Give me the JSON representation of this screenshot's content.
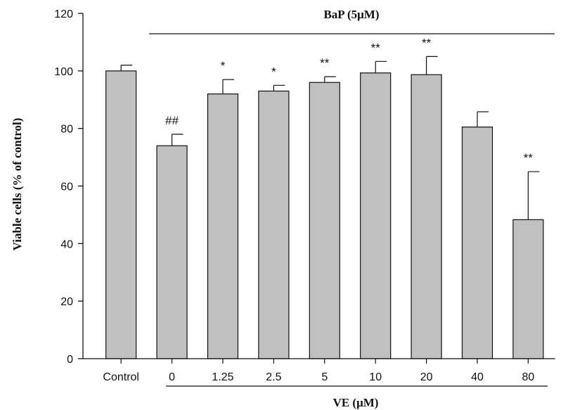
{
  "chart_data": {
    "type": "bar",
    "title": "",
    "group_label_top": "BaP (5μM)",
    "xlabel": "VE (μM)",
    "ylabel": "Viable cells (% of control)",
    "ylim": [
      0,
      120
    ],
    "yticks": [
      0,
      20,
      40,
      60,
      80,
      100,
      120
    ],
    "categories": [
      "Control",
      "0",
      "1.25",
      "2.5",
      "5",
      "10",
      "20",
      "40",
      "80"
    ],
    "values": [
      100,
      74,
      92,
      93,
      96,
      99.3,
      98.7,
      80.5,
      48.3
    ],
    "errors": [
      2,
      4,
      5,
      2,
      2,
      4,
      6.3,
      5.3,
      16.7
    ],
    "annotations": [
      "",
      "##",
      "*",
      "*",
      "**",
      "**",
      "**",
      "",
      "**"
    ],
    "bar_color": "#c0c0c0",
    "grid": false,
    "legend": "none"
  }
}
